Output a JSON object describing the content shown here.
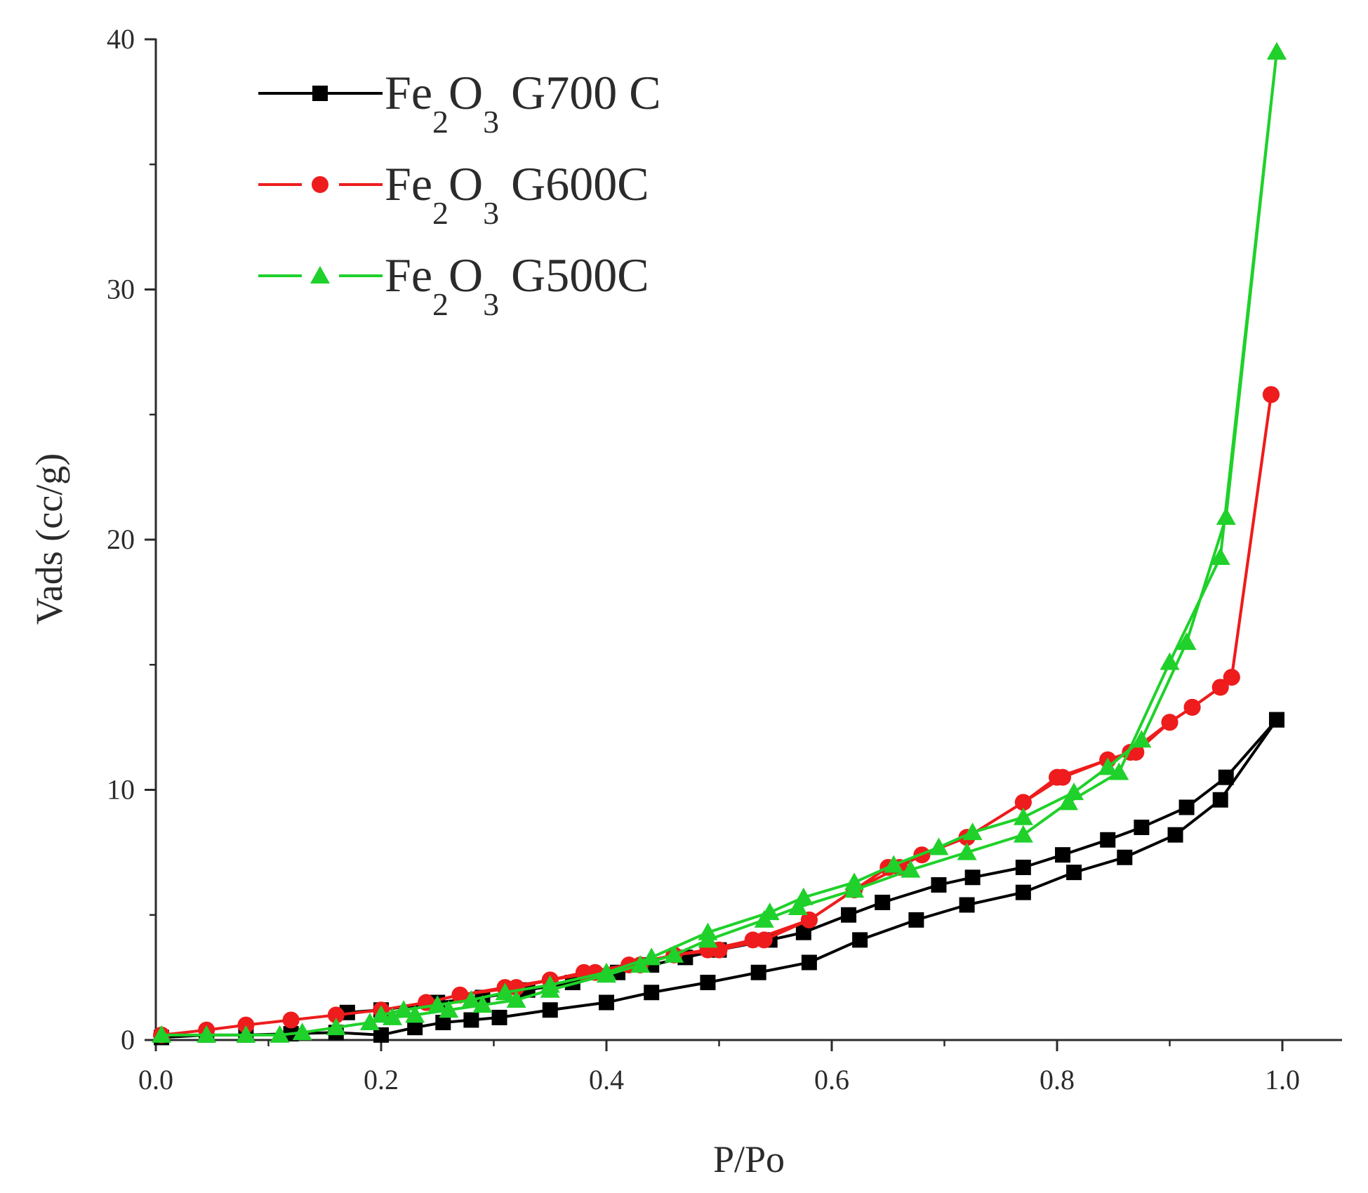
{
  "chart_data": {
    "type": "line",
    "title": "",
    "xlabel": "P/Po",
    "ylabel": "Vads (cc/g)",
    "xlim": [
      0.0,
      1.05
    ],
    "ylim": [
      0,
      40
    ],
    "x_ticks": [
      "0.0",
      "0.2",
      "0.4",
      "0.6",
      "0.8",
      "1.0"
    ],
    "y_ticks": [
      "0",
      "10",
      "20",
      "30",
      "40"
    ],
    "grid": false,
    "legend_position": "top-left",
    "series": [
      {
        "name": "Fe2O3 G700 C",
        "legend": {
          "a": "Fe",
          "b": "2",
          "c": "O",
          "d": "3",
          "e": " G700 C"
        },
        "color": "#000000",
        "marker": "square",
        "adsorption": {
          "x": [
            0.005,
            0.045,
            0.08,
            0.12,
            0.16,
            0.2,
            0.23,
            0.255,
            0.28,
            0.305,
            0.35,
            0.4,
            0.44,
            0.49,
            0.535,
            0.58,
            0.625,
            0.675,
            0.72,
            0.77,
            0.815,
            0.86,
            0.905,
            0.945,
            0.995
          ],
          "y": [
            0.1,
            0.2,
            0.2,
            0.25,
            0.3,
            0.2,
            0.5,
            0.7,
            0.8,
            0.9,
            1.2,
            1.5,
            1.9,
            2.3,
            2.7,
            3.1,
            4.0,
            4.8,
            5.4,
            5.9,
            6.7,
            7.3,
            8.2,
            9.6,
            12.8
          ]
        },
        "desorption": {
          "x": [
            0.995,
            0.95,
            0.915,
            0.875,
            0.845,
            0.805,
            0.77,
            0.725,
            0.695,
            0.645,
            0.615,
            0.575,
            0.545,
            0.5,
            0.47,
            0.44,
            0.41,
            0.37,
            0.33,
            0.29,
            0.25,
            0.2,
            0.17
          ],
          "y": [
            12.8,
            10.5,
            9.3,
            8.5,
            8.0,
            7.4,
            6.9,
            6.5,
            6.2,
            5.5,
            5.0,
            4.3,
            4.0,
            3.6,
            3.3,
            3.0,
            2.7,
            2.3,
            2.0,
            1.7,
            1.5,
            1.2,
            1.1
          ]
        }
      },
      {
        "name": "Fe2O3 G600C",
        "legend": {
          "a": "Fe",
          "b": "2",
          "c": "O",
          "d": "3",
          "e": " G600C"
        },
        "color": "#ee1c1c",
        "marker": "circle",
        "adsorption": {
          "x": [
            0.005,
            0.045,
            0.08,
            0.12,
            0.16,
            0.2,
            0.24,
            0.27,
            0.32,
            0.35,
            0.39,
            0.43,
            0.46,
            0.49,
            0.53,
            0.58,
            0.62,
            0.66,
            0.68,
            0.72,
            0.77,
            0.8,
            0.845,
            0.865,
            0.9,
            0.92,
            0.945,
            0.955,
            0.99
          ],
          "y": [
            0.2,
            0.4,
            0.6,
            0.8,
            1.0,
            1.2,
            1.5,
            1.8,
            2.1,
            2.4,
            2.7,
            3.0,
            3.4,
            3.6,
            4.0,
            4.8,
            6.0,
            6.9,
            7.4,
            8.1,
            9.5,
            10.5,
            11.2,
            11.5,
            12.7,
            13.3,
            14.1,
            14.5,
            25.8
          ]
        },
        "desorption": {
          "x": [
            0.99,
            0.955,
            0.945,
            0.92,
            0.9,
            0.87,
            0.845,
            0.805,
            0.77,
            0.72,
            0.68,
            0.65,
            0.62,
            0.58,
            0.54,
            0.5,
            0.46,
            0.42,
            0.38,
            0.35,
            0.31,
            0.27,
            0.24
          ],
          "y": [
            25.8,
            14.5,
            14.1,
            13.3,
            12.7,
            11.5,
            11.2,
            10.5,
            9.5,
            8.1,
            7.4,
            6.9,
            6.0,
            4.8,
            4.0,
            3.6,
            3.4,
            3.0,
            2.7,
            2.4,
            2.1,
            1.8,
            1.5
          ]
        }
      },
      {
        "name": "Fe2O3 G500C",
        "legend": {
          "a": "Fe",
          "b": "2",
          "c": "O",
          "d": "3",
          "e": " G500C"
        },
        "color": "#1fd12a",
        "marker": "triangle",
        "adsorption": {
          "x": [
            0.005,
            0.045,
            0.08,
            0.11,
            0.13,
            0.16,
            0.19,
            0.21,
            0.23,
            0.26,
            0.29,
            0.32,
            0.35,
            0.4,
            0.43,
            0.46,
            0.49,
            0.54,
            0.57,
            0.62,
            0.67,
            0.72,
            0.77,
            0.81,
            0.855,
            0.9,
            0.945,
            0.995
          ],
          "y": [
            0.2,
            0.2,
            0.2,
            0.2,
            0.3,
            0.5,
            0.7,
            0.9,
            1.0,
            1.2,
            1.4,
            1.6,
            2.0,
            2.6,
            3.0,
            3.4,
            4.0,
            4.8,
            5.3,
            6.0,
            6.8,
            7.5,
            8.2,
            9.5,
            10.7,
            15.1,
            19.3,
            39.5
          ]
        },
        "desorption": {
          "x": [
            0.995,
            0.95,
            0.915,
            0.875,
            0.845,
            0.815,
            0.77,
            0.725,
            0.695,
            0.655,
            0.62,
            0.575,
            0.545,
            0.49,
            0.44,
            0.4,
            0.35,
            0.31,
            0.28,
            0.25,
            0.22,
            0.2
          ],
          "y": [
            39.5,
            20.9,
            15.9,
            12.0,
            10.9,
            9.9,
            8.9,
            8.3,
            7.7,
            7.0,
            6.3,
            5.7,
            5.1,
            4.3,
            3.3,
            2.7,
            2.2,
            1.9,
            1.6,
            1.4,
            1.2,
            1.0
          ]
        }
      }
    ]
  }
}
